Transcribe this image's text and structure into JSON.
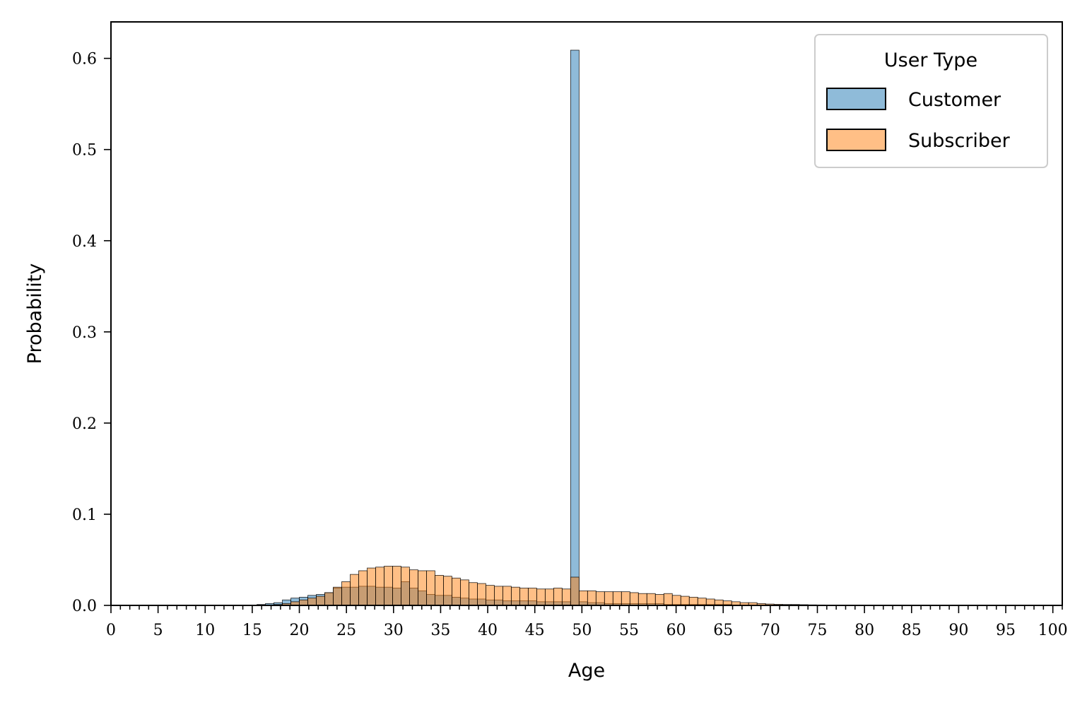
{
  "chart_data": {
    "type": "bar",
    "xlabel": "Age",
    "ylabel": "Probability",
    "xlim": [
      0,
      101
    ],
    "ylim": [
      0,
      0.64
    ],
    "x_major_ticks": [
      0,
      5,
      10,
      15,
      20,
      25,
      30,
      35,
      40,
      45,
      50,
      55,
      60,
      65,
      70,
      75,
      80,
      85,
      90,
      95,
      100
    ],
    "y_ticks": [
      0.0,
      0.1,
      0.2,
      0.3,
      0.4,
      0.5,
      0.6
    ],
    "y_tick_labels": [
      "0.0",
      "0.1",
      "0.2",
      "0.3",
      "0.4",
      "0.5",
      "0.6"
    ],
    "bin_width": 0.9,
    "grid": false,
    "legend": {
      "title": "User Type",
      "placement": "top-right"
    },
    "series": [
      {
        "name": "Customer",
        "color": "#1f77b4",
        "x": [
          15.5,
          16.4,
          17.3,
          18.2,
          19.1,
          20.0,
          20.9,
          21.8,
          22.7,
          23.6,
          24.5,
          25.4,
          26.3,
          27.2,
          28.1,
          29.0,
          29.9,
          30.8,
          31.7,
          32.6,
          33.5,
          34.4,
          35.3,
          36.2,
          37.1,
          38.0,
          38.9,
          39.8,
          40.7,
          41.6,
          42.5,
          43.4,
          44.3,
          45.2,
          46.1,
          47.0,
          47.9,
          48.8,
          49.7,
          50.6,
          51.5,
          52.4,
          53.3,
          54.2,
          55.1,
          56.0,
          56.9,
          57.8,
          58.7,
          59.6,
          60.5,
          61.4,
          62.3,
          63.2,
          64.1,
          65.0,
          65.9,
          66.8,
          67.7,
          68.6,
          69.5,
          70.4,
          71.3,
          72.2
        ],
        "values": [
          0.001,
          0.002,
          0.003,
          0.006,
          0.008,
          0.009,
          0.011,
          0.012,
          0.014,
          0.019,
          0.02,
          0.02,
          0.021,
          0.021,
          0.02,
          0.02,
          0.019,
          0.026,
          0.019,
          0.016,
          0.012,
          0.011,
          0.011,
          0.009,
          0.008,
          0.007,
          0.007,
          0.006,
          0.006,
          0.005,
          0.005,
          0.005,
          0.005,
          0.004,
          0.004,
          0.004,
          0.004,
          0.609,
          0.004,
          0.003,
          0.003,
          0.002,
          0.002,
          0.002,
          0.002,
          0.002,
          0.002,
          0.002,
          0.001,
          0.001,
          0.001,
          0.001,
          0.001,
          0.001,
          0.001,
          0.001,
          0.0005,
          0.0005,
          0.0005,
          0.0005,
          0.0005,
          0.0003,
          0.0003,
          0.0003
        ]
      },
      {
        "name": "Subscriber",
        "color": "#ff7f0e",
        "x": [
          15.5,
          16.4,
          17.3,
          18.2,
          19.1,
          20.0,
          20.9,
          21.8,
          22.7,
          23.6,
          24.5,
          25.4,
          26.3,
          27.2,
          28.1,
          29.0,
          29.9,
          30.8,
          31.7,
          32.6,
          33.5,
          34.4,
          35.3,
          36.2,
          37.1,
          38.0,
          38.9,
          39.8,
          40.7,
          41.6,
          42.5,
          43.4,
          44.3,
          45.2,
          46.1,
          47.0,
          47.9,
          48.8,
          49.7,
          50.6,
          51.5,
          52.4,
          53.3,
          54.2,
          55.1,
          56.0,
          56.9,
          57.8,
          58.7,
          59.6,
          60.5,
          61.4,
          62.3,
          63.2,
          64.1,
          65.0,
          65.9,
          66.8,
          67.7,
          68.6,
          69.5,
          70.4,
          71.3,
          72.2,
          73.1,
          74.0,
          74.9,
          75.8,
          76.7,
          77.6,
          78.5
        ],
        "values": [
          0.0003,
          0.0005,
          0.001,
          0.002,
          0.004,
          0.006,
          0.008,
          0.01,
          0.014,
          0.02,
          0.026,
          0.034,
          0.038,
          0.041,
          0.042,
          0.043,
          0.043,
          0.042,
          0.039,
          0.038,
          0.038,
          0.033,
          0.032,
          0.03,
          0.028,
          0.025,
          0.024,
          0.022,
          0.021,
          0.021,
          0.02,
          0.019,
          0.019,
          0.018,
          0.018,
          0.019,
          0.018,
          0.031,
          0.016,
          0.016,
          0.015,
          0.015,
          0.015,
          0.015,
          0.014,
          0.013,
          0.013,
          0.012,
          0.013,
          0.011,
          0.01,
          0.009,
          0.008,
          0.007,
          0.006,
          0.005,
          0.004,
          0.003,
          0.003,
          0.002,
          0.0015,
          0.0012,
          0.001,
          0.001,
          0.0008,
          0.0006,
          0.0005,
          0.0004,
          0.0003,
          0.0003,
          0.0002
        ]
      }
    ]
  }
}
